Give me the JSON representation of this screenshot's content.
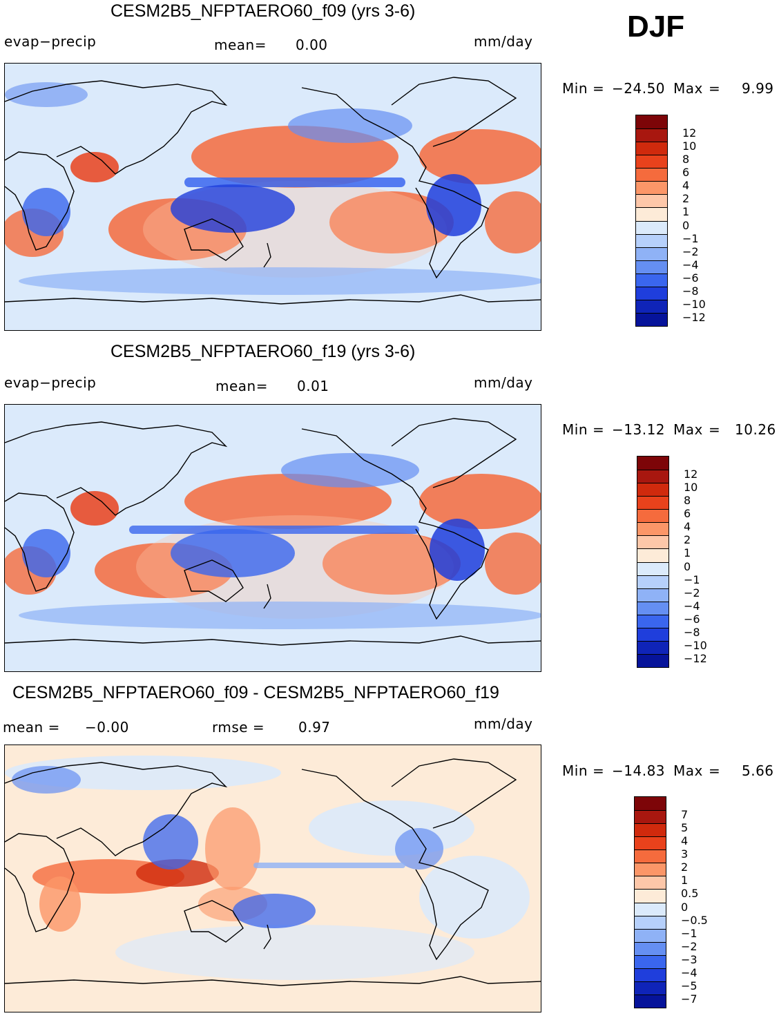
{
  "season": "DJF",
  "panels": [
    {
      "title": "CESM2B5_NFPTAERO60_f09 (yrs 3-6)",
      "left_label": "evap−precip",
      "center_label": "mean=",
      "center_value": "0.00",
      "units": "mm/day",
      "min_label": "Min",
      "min_value": "−24.50",
      "max_label": "Max",
      "max_value": "9.99",
      "map_description": "global map of evaporation minus precipitation",
      "colorbar": {
        "ticks": [
          "12",
          "10",
          "8",
          "6",
          "4",
          "2",
          "1",
          "0",
          "−1",
          "−2",
          "−4",
          "−6",
          "−8",
          "−10",
          "−12"
        ],
        "colors": [
          "#7d0508",
          "#a8170f",
          "#d02a0d",
          "#e9421c",
          "#f56b3d",
          "#fb9668",
          "#fdc7a9",
          "#fdebd8",
          "#dbeafb",
          "#b6d0fb",
          "#8fb2f6",
          "#658ff2",
          "#3a66ee",
          "#1f3edc",
          "#0f24b8",
          "#06139a"
        ]
      }
    },
    {
      "title": "CESM2B5_NFPTAERO60_f19 (yrs 3-6)",
      "left_label": "evap−precip",
      "center_label": "mean=",
      "center_value": "0.01",
      "units": "mm/day",
      "min_label": "Min",
      "min_value": "−13.12",
      "max_label": "Max",
      "max_value": "10.26",
      "map_description": "global map of evaporation minus precipitation",
      "colorbar": {
        "ticks": [
          "12",
          "10",
          "8",
          "6",
          "4",
          "2",
          "1",
          "0",
          "−1",
          "−2",
          "−4",
          "−6",
          "−8",
          "−10",
          "−12"
        ],
        "colors": [
          "#7d0508",
          "#a8170f",
          "#d02a0d",
          "#e9421c",
          "#f56b3d",
          "#fb9668",
          "#fdc7a9",
          "#fdebd8",
          "#dbeafb",
          "#b6d0fb",
          "#8fb2f6",
          "#658ff2",
          "#3a66ee",
          "#1f3edc",
          "#0f24b8",
          "#06139a"
        ]
      }
    },
    {
      "title": "CESM2B5_NFPTAERO60_f09 - CESM2B5_NFPTAERO60_f19",
      "left_label": "mean  =",
      "left_value": "−0.00",
      "center_label": "rmse  =",
      "center_value": "0.97",
      "units": "mm/day",
      "min_label": "Min",
      "min_value": "−14.83",
      "max_label": "Max",
      "max_value": "5.66",
      "map_description": "global map of difference field",
      "colorbar": {
        "ticks": [
          "7",
          "5",
          "4",
          "3",
          "2",
          "1",
          "0.5",
          "0",
          "−0.5",
          "−1",
          "−2",
          "−3",
          "−4",
          "−5",
          "−7"
        ],
        "colors": [
          "#7d0508",
          "#a8170f",
          "#d02a0d",
          "#e9421c",
          "#f56b3d",
          "#fb9668",
          "#fdc7a9",
          "#fdebd8",
          "#dbeafb",
          "#b6d0fb",
          "#8fb2f6",
          "#658ff2",
          "#3a66ee",
          "#1f3edc",
          "#0f24b8",
          "#06139a"
        ]
      }
    }
  ]
}
